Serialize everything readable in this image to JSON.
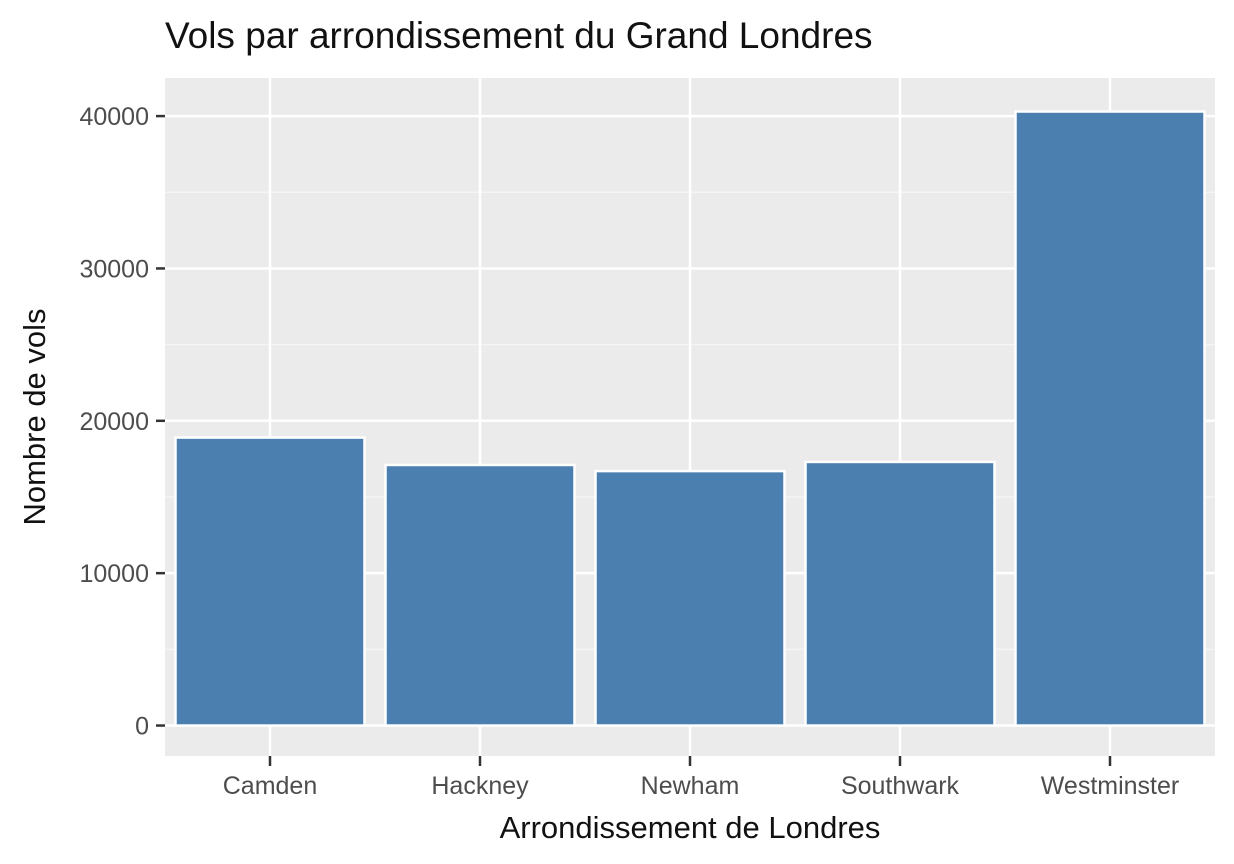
{
  "chart_data": {
    "type": "bar",
    "title": "Vols par arrondissement du Grand Londres",
    "xlabel": "Arrondissement de Londres",
    "ylabel": "Nombre de vols",
    "categories": [
      "Camden",
      "Hackney",
      "Newham",
      "Southwark",
      "Westminster"
    ],
    "values": [
      18900,
      17100,
      16700,
      17300,
      40300
    ],
    "ylim": [
      -2000,
      42500
    ],
    "yticks": [
      0,
      10000,
      20000,
      30000,
      40000
    ],
    "ytick_labels": [
      "0",
      "10000",
      "20000",
      "30000",
      "40000"
    ],
    "grid": true,
    "legend": "none",
    "colors": {
      "bar_fill": "#4a7fb0",
      "bar_stroke": "#ffffff",
      "panel_bg": "#ebebeb",
      "grid_major": "#ffffff",
      "grid_minor": "#f5f5f5",
      "tick_color": "#333333",
      "text_dark": "#111111",
      "text_tick": "#4d4d4d"
    }
  }
}
